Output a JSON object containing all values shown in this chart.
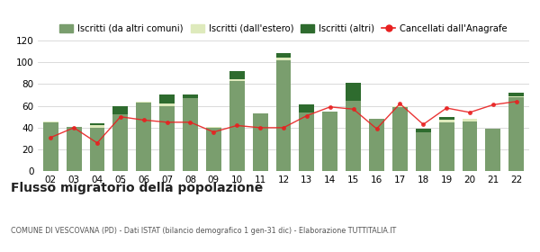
{
  "years": [
    "02",
    "03",
    "04",
    "05",
    "06",
    "07",
    "08",
    "09",
    "10",
    "11",
    "12",
    "13",
    "14",
    "15",
    "16",
    "17",
    "18",
    "19",
    "20",
    "21",
    "22"
  ],
  "iscritti_altri_comuni": [
    45,
    41,
    40,
    52,
    63,
    60,
    67,
    40,
    83,
    53,
    102,
    54,
    55,
    65,
    48,
    59,
    36,
    45,
    46,
    39,
    68
  ],
  "iscritti_estero_vals": [
    1,
    0,
    2,
    0,
    1,
    2,
    0,
    1,
    1,
    0,
    2,
    0,
    0,
    0,
    0,
    1,
    0,
    2,
    2,
    0,
    1
  ],
  "iscritti_altri": [
    0,
    0,
    2,
    8,
    0,
    8,
    3,
    0,
    8,
    0,
    4,
    7,
    0,
    16,
    0,
    0,
    3,
    3,
    0,
    0,
    3
  ],
  "cancellati": [
    31,
    40,
    26,
    50,
    47,
    45,
    45,
    36,
    42,
    40,
    40,
    51,
    59,
    57,
    39,
    62,
    43,
    58,
    54,
    61,
    64
  ],
  "color_altri_comuni": "#7a9e6e",
  "color_estero": "#deeabc",
  "color_altri": "#2e6b2e",
  "color_cancellati": "#e82020",
  "ylim": [
    0,
    120
  ],
  "yticks": [
    0,
    20,
    40,
    60,
    80,
    100,
    120
  ],
  "title": "Flusso migratorio della popolazione",
  "subtitle": "COMUNE DI VESCOVANA (PD) - Dati ISTAT (bilancio demografico 1 gen-31 dic) - Elaborazione TUTTITALIA.IT",
  "legend_labels": [
    "Iscritti (da altri comuni)",
    "Iscritti (dall'estero)",
    "Iscritti (altri)",
    "Cancellati dall'Anagrafe"
  ]
}
